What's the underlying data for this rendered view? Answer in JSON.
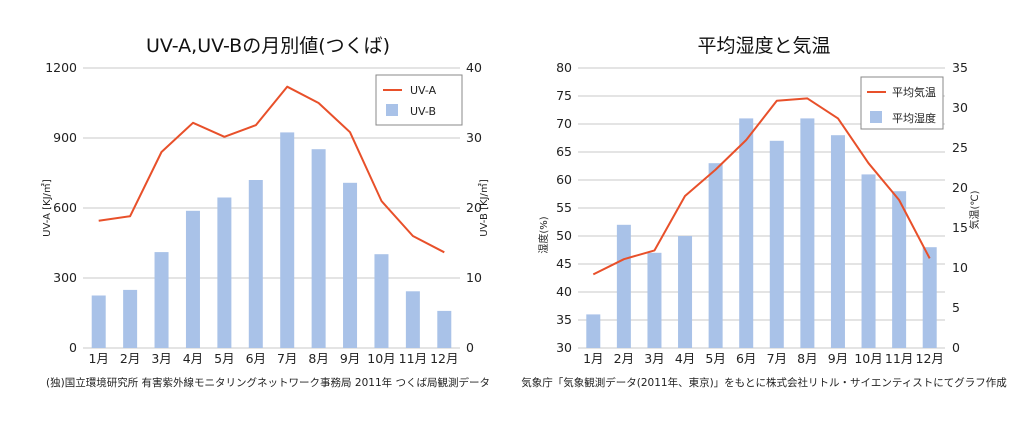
{
  "colors": {
    "line": "#e8502a",
    "bar": "#a9c2e8",
    "grid": "#c8c8c8"
  },
  "chart_data": [
    {
      "type": "bar+line",
      "title": "UV-A,UV-Bの月別値(つくば)",
      "categories": [
        "1月",
        "2月",
        "3月",
        "4月",
        "5月",
        "6月",
        "7月",
        "8月",
        "9月",
        "10月",
        "11月",
        "12月"
      ],
      "series": [
        {
          "name": "UV-A",
          "type": "line",
          "axis": "left",
          "values": [
            545,
            565,
            840,
            965,
            905,
            955,
            1120,
            1050,
            925,
            630,
            480,
            410
          ]
        },
        {
          "name": "UV-B",
          "type": "bar",
          "axis": "right",
          "values": [
            7.5,
            8.3,
            13.7,
            19.6,
            21.5,
            24.0,
            30.8,
            28.4,
            23.6,
            13.4,
            8.1,
            5.3
          ]
        }
      ],
      "ylabel_left": "UV-A [KJ/㎡]",
      "ylabel_right": "UV-B [KJ/㎡]",
      "ylim_left": [
        0,
        1200
      ],
      "yticks_left": [
        0,
        300,
        600,
        900,
        1200
      ],
      "ylim_right": [
        0,
        40
      ],
      "yticks_right": [
        0,
        10,
        20,
        30,
        40
      ],
      "grid": true,
      "legend": "top-right",
      "source": "(独)国立環境研究所 有害紫外線モニタリングネットワーク事務局 2011年 つくば局観測データ"
    },
    {
      "type": "bar+line",
      "title": "平均湿度と気温",
      "categories": [
        "1月",
        "2月",
        "3月",
        "4月",
        "5月",
        "6月",
        "7月",
        "8月",
        "9月",
        "10月",
        "11月",
        "12月"
      ],
      "series": [
        {
          "name": "平均気温",
          "type": "line",
          "axis": "right",
          "values": [
            9.2,
            11.1,
            12.2,
            19.0,
            22.3,
            26.0,
            30.9,
            31.2,
            28.7,
            23.1,
            18.5,
            11.2
          ]
        },
        {
          "name": "平均湿度",
          "type": "bar",
          "axis": "left",
          "values": [
            36,
            52,
            47,
            50,
            63,
            71,
            67,
            71,
            68,
            61,
            58,
            48
          ]
        }
      ],
      "ylabel_left": "湿度(%)",
      "ylabel_right": "気温(℃)",
      "ylim_left": [
        30,
        80
      ],
      "yticks_left": [
        30,
        35,
        40,
        45,
        50,
        55,
        60,
        65,
        70,
        75,
        80
      ],
      "ylim_right": [
        0,
        35
      ],
      "yticks_right": [
        0,
        5,
        10,
        15,
        20,
        25,
        30,
        35
      ],
      "grid": true,
      "legend": "top-right",
      "source": "気象庁「気象観測データ(2011年、東京)」をもとに株式会社リトル・サイエンティストにてグラフ作成"
    }
  ]
}
